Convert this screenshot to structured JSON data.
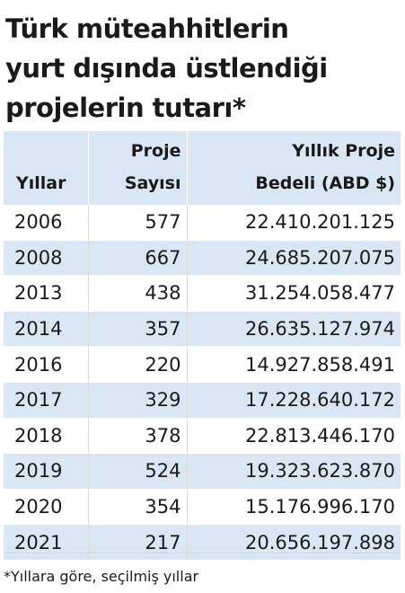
{
  "chart_data": {
    "type": "table",
    "title": "Türk müteahhitlerin\nyurt dışında üstlendiği\nprojelerin tutarı*",
    "columns": [
      "Yıllar",
      "Proje Sayısı",
      "Yıllık Proje Bedeli (ABD $)"
    ],
    "header": {
      "col1": "Yıllar",
      "col2_line1": "Proje",
      "col2_line2": "Sayısı",
      "col3_line1": "Yıllık Proje",
      "col3_line2": "Bedeli (ABD $)"
    },
    "rows": [
      {
        "year": "2006",
        "count": "577",
        "value": "22.410.201.125"
      },
      {
        "year": "2008",
        "count": "667",
        "value": "24.685.207.075"
      },
      {
        "year": "2013",
        "count": "438",
        "value": "31.254.058.477"
      },
      {
        "year": "2014",
        "count": "357",
        "value": "26.635.127.974"
      },
      {
        "year": "2016",
        "count": "220",
        "value": "14.927.858.491"
      },
      {
        "year": "2017",
        "count": "329",
        "value": "17.228.640.172"
      },
      {
        "year": "2018",
        "count": "378",
        "value": "22.813.446.170"
      },
      {
        "year": "2019",
        "count": "524",
        "value": "19.323.623.870"
      },
      {
        "year": "2020",
        "count": "354",
        "value": "15.176.996.170"
      },
      {
        "year": "2021",
        "count": "217",
        "value": "20.656.197.898"
      }
    ],
    "footnote": "*Yıllara göre, seçilmiş yıllar"
  },
  "colors": {
    "header_bg": "#d9e6f3",
    "stripe_bg": "#d9e6f3",
    "text": "#1a1a1a"
  }
}
